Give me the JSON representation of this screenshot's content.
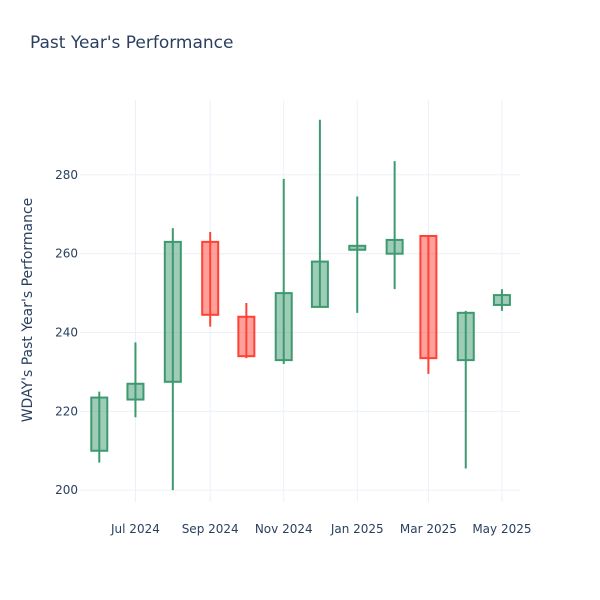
{
  "chart_data": {
    "type": "candlestick",
    "title": "Past Year's Performance",
    "ylabel": "WDAY's Past Year's Performance",
    "xlabel": "",
    "ylim": [
      197,
      299
    ],
    "y_ticks": [
      200,
      220,
      240,
      260,
      280
    ],
    "x_range": [
      "2024-05-16",
      "2025-05-16"
    ],
    "x_ticks": [
      {
        "date": "2024-07-01",
        "label": "Jul 2024"
      },
      {
        "date": "2024-09-01",
        "label": "Sep 2024"
      },
      {
        "date": "2024-11-01",
        "label": "Nov 2024"
      },
      {
        "date": "2025-01-01",
        "label": "Jan 2025"
      },
      {
        "date": "2025-03-01",
        "label": "Mar 2025"
      },
      {
        "date": "2025-05-01",
        "label": "May 2025"
      }
    ],
    "increasing_color": "#3d9970",
    "decreasing_color": "#ff4136",
    "grid": true,
    "candles": [
      {
        "date": "2024-06-01",
        "open": 210.0,
        "high": 225.0,
        "low": 207.0,
        "close": 223.5
      },
      {
        "date": "2024-07-01",
        "open": 223.0,
        "high": 237.5,
        "low": 218.5,
        "close": 227.0
      },
      {
        "date": "2024-08-01",
        "open": 227.5,
        "high": 266.5,
        "low": 200.0,
        "close": 263.0
      },
      {
        "date": "2024-09-01",
        "open": 263.0,
        "high": 265.5,
        "low": 241.5,
        "close": 244.5
      },
      {
        "date": "2024-10-01",
        "open": 244.0,
        "high": 247.5,
        "low": 233.5,
        "close": 234.0
      },
      {
        "date": "2024-11-01",
        "open": 233.0,
        "high": 279.0,
        "low": 232.0,
        "close": 250.0
      },
      {
        "date": "2024-12-01",
        "open": 246.5,
        "high": 294.0,
        "low": 246.5,
        "close": 258.0
      },
      {
        "date": "2025-01-01",
        "open": 261.0,
        "high": 274.5,
        "low": 245.0,
        "close": 262.0
      },
      {
        "date": "2025-02-01",
        "open": 260.0,
        "high": 283.5,
        "low": 251.0,
        "close": 263.5
      },
      {
        "date": "2025-03-01",
        "open": 264.5,
        "high": 264.5,
        "low": 229.5,
        "close": 233.5
      },
      {
        "date": "2025-04-01",
        "open": 233.0,
        "high": 245.5,
        "low": 205.5,
        "close": 245.0
      },
      {
        "date": "2025-05-01",
        "open": 247.0,
        "high": 251.0,
        "low": 245.5,
        "close": 249.5
      }
    ]
  }
}
